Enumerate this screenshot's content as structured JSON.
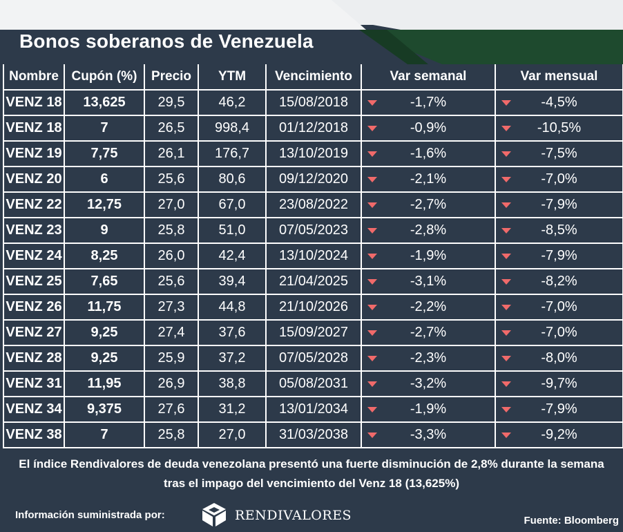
{
  "title": "Bonos soberanos de Venezuela",
  "table": {
    "headers": [
      "Nombre",
      "Cupón (%)",
      "Precio",
      "YTM",
      "Vencimiento",
      "Var semanal",
      "Var mensual"
    ],
    "rows": [
      {
        "name": "VENZ 18",
        "coupon": "13,625",
        "price": "29,5",
        "ytm": "46,2",
        "maturity": "15/08/2018",
        "weekly": "-1,7%",
        "monthly": "-4,5%"
      },
      {
        "name": "VENZ 18",
        "coupon": "7",
        "price": "26,5",
        "ytm": "998,4",
        "maturity": "01/12/2018",
        "weekly": "-0,9%",
        "monthly": "-10,5%"
      },
      {
        "name": "VENZ 19",
        "coupon": "7,75",
        "price": "26,1",
        "ytm": "176,7",
        "maturity": "13/10/2019",
        "weekly": "-1,6%",
        "monthly": "-7,5%"
      },
      {
        "name": "VENZ 20",
        "coupon": "6",
        "price": "25,6",
        "ytm": "80,6",
        "maturity": "09/12/2020",
        "weekly": "-2,1%",
        "monthly": "-7,0%"
      },
      {
        "name": "VENZ 22",
        "coupon": "12,75",
        "price": "27,0",
        "ytm": "67,0",
        "maturity": "23/08/2022",
        "weekly": "-2,7%",
        "monthly": "-7,9%"
      },
      {
        "name": "VENZ 23",
        "coupon": "9",
        "price": "25,8",
        "ytm": "51,0",
        "maturity": "07/05/2023",
        "weekly": "-2,8%",
        "monthly": "-8,5%"
      },
      {
        "name": "VENZ 24",
        "coupon": "8,25",
        "price": "26,0",
        "ytm": "42,4",
        "maturity": "13/10/2024",
        "weekly": "-1,9%",
        "monthly": "-7,9%"
      },
      {
        "name": "VENZ 25",
        "coupon": "7,65",
        "price": "25,6",
        "ytm": "39,4",
        "maturity": "21/04/2025",
        "weekly": "-3,1%",
        "monthly": "-8,2%"
      },
      {
        "name": "VENZ 26",
        "coupon": "11,75",
        "price": "27,3",
        "ytm": "44,8",
        "maturity": "21/10/2026",
        "weekly": "-2,2%",
        "monthly": "-7,0%"
      },
      {
        "name": "VENZ 27",
        "coupon": "9,25",
        "price": "27,4",
        "ytm": "37,6",
        "maturity": "15/09/2027",
        "weekly": "-2,7%",
        "monthly": "-7,0%"
      },
      {
        "name": "VENZ 28",
        "coupon": "9,25",
        "price": "25,9",
        "ytm": "37,2",
        "maturity": "07/05/2028",
        "weekly": "-2,3%",
        "monthly": "-8,0%"
      },
      {
        "name": "VENZ 31",
        "coupon": "11,95",
        "price": "26,9",
        "ytm": "38,8",
        "maturity": "05/08/2031",
        "weekly": "-3,2%",
        "monthly": "-9,7%"
      },
      {
        "name": "VENZ 34",
        "coupon": "9,375",
        "price": "27,6",
        "ytm": "31,2",
        "maturity": "13/01/2034",
        "weekly": "-1,9%",
        "monthly": "-7,9%"
      },
      {
        "name": "VENZ 38",
        "coupon": "7",
        "price": "25,8",
        "ytm": "27,0",
        "maturity": "31/03/2038",
        "weekly": "-3,3%",
        "monthly": "-9,2%"
      }
    ]
  },
  "note": "El índice Rendivalores de deuda venezolana presentó una fuerte disminución de 2,8% durante la semana tras el impago del vencimiento del Venz 18 (13,625%)",
  "footer": {
    "provided_by": "Información suministrada por:",
    "logo_text": "RENDIVALORES",
    "source": "Fuente: Bloomberg"
  },
  "icons": {
    "variation": "triangle-down-icon",
    "logo": "cube-icon"
  },
  "colors": {
    "background": "#2d3a4a",
    "banner_green": "#1e4a2e",
    "down_marker": "#f06a6a",
    "grid": "#ffffff"
  }
}
